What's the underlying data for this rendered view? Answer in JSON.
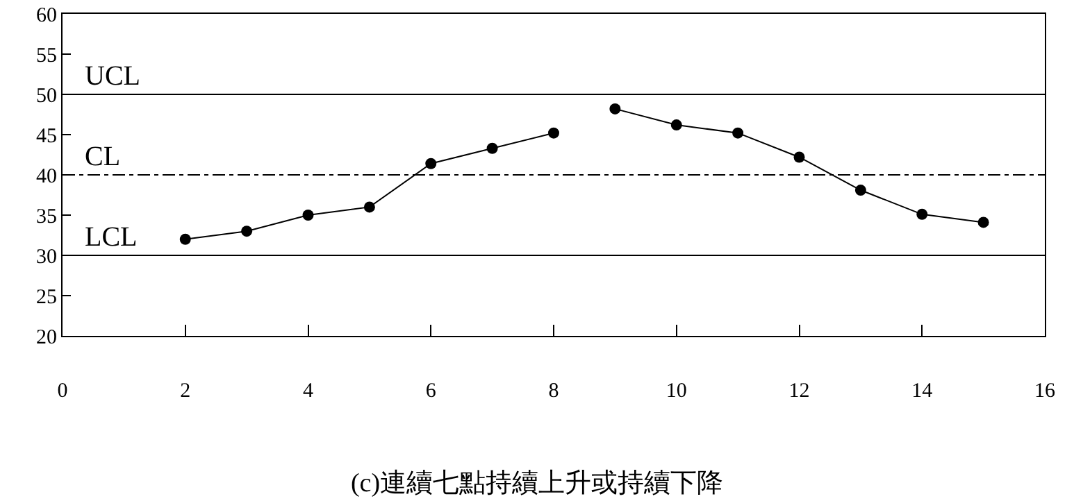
{
  "chart_data": {
    "type": "line",
    "title": "(c)連續七點持續上升或持續下降",
    "x": [
      2,
      3,
      4,
      5,
      6,
      7,
      8,
      8.5,
      9,
      10,
      11,
      12,
      13,
      14,
      15
    ],
    "series": [
      {
        "color": "#000000",
        "values": [
          32,
          33,
          35,
          36,
          41.4,
          43.3,
          45.2,
          null,
          48.2,
          46.2,
          45.2,
          42.2,
          38.1,
          35.1,
          34.1
        ]
      }
    ],
    "xlim": [
      0,
      16
    ],
    "xticks": [
      0,
      2,
      4,
      6,
      8,
      10,
      12,
      14,
      16
    ],
    "ylim": [
      20,
      60
    ],
    "yticks": [
      20,
      25,
      30,
      35,
      40,
      45,
      50,
      55,
      60
    ],
    "ref_lines": [
      {
        "axis": "y",
        "value": 50,
        "label": "UCL",
        "color": "#000000",
        "line_style": "solid"
      },
      {
        "axis": "y",
        "value": 40,
        "label": "CL",
        "color": "#000000",
        "line_style": "dashdot"
      },
      {
        "axis": "y",
        "value": 30,
        "label": "LCL",
        "color": "#000000",
        "line_style": "solid"
      }
    ],
    "marker": "circle",
    "line_style": "solid"
  }
}
